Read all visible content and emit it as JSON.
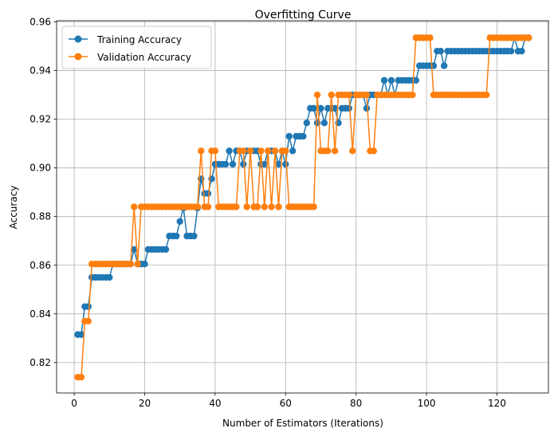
{
  "chart_data": {
    "type": "line",
    "title": "Overfitting Curve",
    "xlabel": "Number of Estimators (Iterations)",
    "ylabel": "Accuracy",
    "xlim": [
      -5,
      134.6
    ],
    "ylim": [
      0.8075,
      0.9605
    ],
    "xticks": [
      0,
      20,
      40,
      60,
      80,
      100,
      120
    ],
    "yticks": [
      0.82,
      0.84,
      0.86,
      0.88,
      0.9,
      0.92,
      0.94,
      0.96
    ],
    "grid": true,
    "legend_position": "top-left",
    "series": [
      {
        "name": "Training Accuracy",
        "color": "#1f77b4",
        "x": [
          1,
          2,
          3,
          4,
          5,
          6,
          7,
          8,
          9,
          10,
          11,
          12,
          13,
          14,
          15,
          16,
          17,
          18,
          19,
          20,
          21,
          22,
          23,
          24,
          25,
          26,
          27,
          28,
          29,
          30,
          31,
          32,
          33,
          34,
          35,
          36,
          37,
          38,
          39,
          40,
          41,
          42,
          43,
          44,
          45,
          46,
          47,
          48,
          49,
          50,
          51,
          52,
          53,
          54,
          55,
          56,
          57,
          58,
          59,
          60,
          61,
          62,
          63,
          64,
          65,
          66,
          67,
          68,
          69,
          70,
          71,
          72,
          73,
          74,
          75,
          76,
          77,
          78,
          79,
          80,
          81,
          82,
          83,
          84,
          85,
          86,
          87,
          88,
          89,
          90,
          91,
          92,
          93,
          94,
          95,
          96,
          97,
          98,
          99,
          100,
          101,
          102,
          103,
          104,
          105,
          106,
          107,
          108,
          109,
          110,
          111,
          112,
          113,
          114,
          115,
          116,
          117,
          118,
          119,
          120,
          121,
          122,
          123,
          124,
          125,
          126,
          127,
          128,
          129
        ],
        "y": [
          0.8315,
          0.8315,
          0.843,
          0.843,
          0.855,
          0.855,
          0.855,
          0.855,
          0.855,
          0.855,
          0.8605,
          0.8605,
          0.8605,
          0.8605,
          0.8605,
          0.8605,
          0.8665,
          0.8605,
          0.8605,
          0.8605,
          0.8665,
          0.8665,
          0.8665,
          0.8665,
          0.8665,
          0.8665,
          0.872,
          0.872,
          0.872,
          0.878,
          0.8835,
          0.872,
          0.872,
          0.872,
          0.8835,
          0.8955,
          0.8895,
          0.8895,
          0.8955,
          0.9015,
          0.9015,
          0.9015,
          0.9015,
          0.907,
          0.9015,
          0.907,
          0.907,
          0.9015,
          0.907,
          0.907,
          0.907,
          0.907,
          0.9015,
          0.9015,
          0.907,
          0.907,
          0.907,
          0.9015,
          0.907,
          0.9015,
          0.913,
          0.907,
          0.913,
          0.913,
          0.913,
          0.9185,
          0.9245,
          0.9245,
          0.9185,
          0.9245,
          0.9185,
          0.9245,
          0.9245,
          0.9245,
          0.9185,
          0.9245,
          0.9245,
          0.9245,
          0.93,
          0.93,
          0.93,
          0.93,
          0.9245,
          0.93,
          0.93,
          0.93,
          0.93,
          0.936,
          0.93,
          0.936,
          0.93,
          0.936,
          0.936,
          0.936,
          0.936,
          0.936,
          0.936,
          0.942,
          0.942,
          0.942,
          0.942,
          0.942,
          0.948,
          0.948,
          0.942,
          0.948,
          0.948,
          0.948,
          0.948,
          0.948,
          0.948,
          0.948,
          0.948,
          0.948,
          0.948,
          0.948,
          0.948,
          0.948,
          0.948,
          0.948,
          0.948,
          0.948,
          0.948,
          0.948,
          0.9535,
          0.948,
          0.948,
          0.9535,
          0.9535
        ]
      },
      {
        "name": "Validation Accuracy",
        "color": "#ff7f0e",
        "x": [
          1,
          2,
          3,
          4,
          5,
          6,
          7,
          8,
          9,
          10,
          11,
          12,
          13,
          14,
          15,
          16,
          17,
          18,
          19,
          20,
          21,
          22,
          23,
          24,
          25,
          26,
          27,
          28,
          29,
          30,
          31,
          32,
          33,
          34,
          35,
          36,
          37,
          38,
          39,
          40,
          41,
          42,
          43,
          44,
          45,
          46,
          47,
          48,
          49,
          50,
          51,
          52,
          53,
          54,
          55,
          56,
          57,
          58,
          59,
          60,
          61,
          62,
          63,
          64,
          65,
          66,
          67,
          68,
          69,
          70,
          71,
          72,
          73,
          74,
          75,
          76,
          77,
          78,
          79,
          80,
          81,
          82,
          83,
          84,
          85,
          86,
          87,
          88,
          89,
          90,
          91,
          92,
          93,
          94,
          95,
          96,
          97,
          98,
          99,
          100,
          101,
          102,
          103,
          104,
          105,
          106,
          107,
          108,
          109,
          110,
          111,
          112,
          113,
          114,
          115,
          116,
          117,
          118,
          119,
          120,
          121,
          122,
          123,
          124,
          125,
          126,
          127,
          128,
          129
        ],
        "y": [
          0.814,
          0.814,
          0.837,
          0.837,
          0.8605,
          0.8605,
          0.8605,
          0.8605,
          0.8605,
          0.8605,
          0.8605,
          0.8605,
          0.8605,
          0.8605,
          0.8605,
          0.8605,
          0.884,
          0.8605,
          0.884,
          0.884,
          0.884,
          0.884,
          0.884,
          0.884,
          0.884,
          0.884,
          0.884,
          0.884,
          0.884,
          0.884,
          0.884,
          0.884,
          0.884,
          0.884,
          0.884,
          0.907,
          0.884,
          0.884,
          0.907,
          0.907,
          0.884,
          0.884,
          0.884,
          0.884,
          0.884,
          0.884,
          0.907,
          0.907,
          0.884,
          0.907,
          0.884,
          0.884,
          0.907,
          0.884,
          0.907,
          0.884,
          0.907,
          0.884,
          0.907,
          0.907,
          0.884,
          0.884,
          0.884,
          0.884,
          0.884,
          0.884,
          0.884,
          0.884,
          0.93,
          0.907,
          0.907,
          0.907,
          0.93,
          0.907,
          0.93,
          0.93,
          0.93,
          0.93,
          0.907,
          0.93,
          0.93,
          0.93,
          0.93,
          0.907,
          0.907,
          0.93,
          0.93,
          0.93,
          0.93,
          0.93,
          0.93,
          0.93,
          0.93,
          0.93,
          0.93,
          0.93,
          0.9535,
          0.9535,
          0.9535,
          0.9535,
          0.9535,
          0.93,
          0.93,
          0.93,
          0.93,
          0.93,
          0.93,
          0.93,
          0.93,
          0.93,
          0.93,
          0.93,
          0.93,
          0.93,
          0.93,
          0.93,
          0.93,
          0.9535,
          0.9535,
          0.9535,
          0.9535,
          0.9535,
          0.9535,
          0.9535,
          0.9535,
          0.9535,
          0.9535,
          0.9535,
          0.9535
        ]
      }
    ]
  }
}
